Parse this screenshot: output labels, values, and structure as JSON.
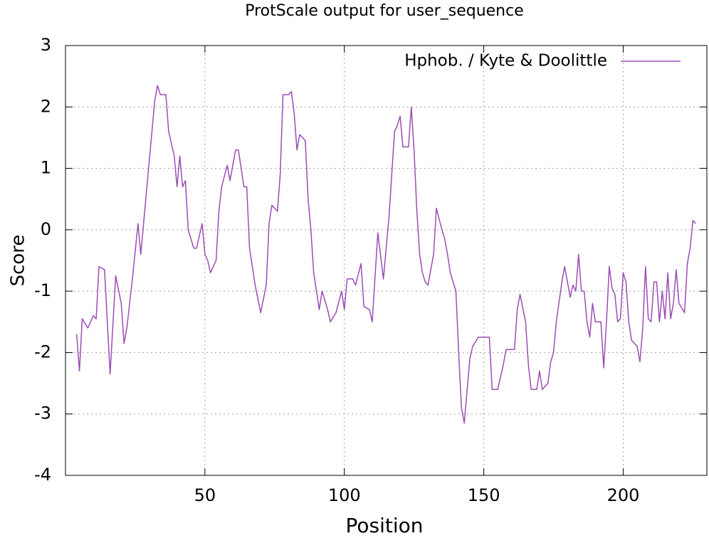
{
  "chart_data": {
    "type": "line",
    "title": "ProtScale output for user_sequence",
    "x_label": "Position",
    "y_label": "Score",
    "x": [
      4,
      5,
      6,
      8,
      10,
      11,
      12,
      14,
      16,
      18,
      20,
      21,
      22,
      24,
      26,
      27,
      29,
      31,
      32,
      33,
      34,
      36,
      37,
      39,
      40,
      41,
      42,
      43,
      44,
      46,
      47,
      49,
      50,
      51,
      52,
      54,
      55,
      56,
      58,
      59,
      61,
      62,
      64,
      65,
      66,
      68,
      70,
      72,
      73,
      74,
      76,
      77,
      78,
      80,
      81,
      82,
      83,
      84,
      86,
      87,
      88,
      89,
      91,
      92,
      94,
      95,
      97,
      99,
      100,
      101,
      103,
      104,
      106,
      107,
      109,
      110,
      112,
      114,
      116,
      118,
      119,
      120,
      121,
      123,
      124,
      125,
      126,
      127,
      128,
      129,
      130,
      132,
      133,
      135,
      136,
      137,
      138,
      140,
      141,
      142,
      143,
      145,
      146,
      148,
      149,
      152,
      153,
      155,
      157,
      158,
      161,
      162,
      163,
      165,
      166,
      167,
      169,
      170,
      171,
      173,
      174,
      175,
      176,
      178,
      179,
      181,
      182,
      183,
      184,
      185,
      186,
      187,
      188,
      189,
      190,
      192,
      193,
      194,
      195,
      196,
      197,
      198,
      199,
      200,
      201,
      202,
      203,
      205,
      206,
      207,
      208,
      209,
      210,
      211,
      212,
      213,
      214,
      215,
      216,
      217,
      218,
      219,
      220,
      222,
      223,
      224,
      225,
      226
    ],
    "series": [
      {
        "name": "Hphob. / Kyte & Doolittle",
        "color": "#9b4db5",
        "values": [
          -1.7,
          -2.3,
          -1.45,
          -1.6,
          -1.4,
          -1.45,
          -0.6,
          -0.65,
          -2.35,
          -0.75,
          -1.2,
          -1.85,
          -1.6,
          -0.8,
          0.1,
          -0.4,
          0.6,
          1.6,
          2.1,
          2.35,
          2.2,
          2.2,
          1.6,
          1.2,
          0.7,
          1.2,
          0.7,
          0.8,
          0,
          -0.3,
          -0.3,
          0.1,
          -0.4,
          -0.5,
          -0.7,
          -0.5,
          0.3,
          0.7,
          1.05,
          0.8,
          1.3,
          1.3,
          0.7,
          0.7,
          -0.3,
          -0.9,
          -1.35,
          -0.9,
          0.1,
          0.4,
          0.3,
          0.9,
          2.2,
          2.2,
          2.25,
          1.9,
          1.3,
          1.55,
          1.45,
          0.5,
          0,
          -0.7,
          -1.3,
          -1.0,
          -1.3,
          -1.5,
          -1.35,
          -1.0,
          -1.3,
          -0.8,
          -0.8,
          -0.9,
          -0.55,
          -1.25,
          -1.3,
          -1.5,
          -0.05,
          -0.8,
          0.2,
          1.6,
          1.7,
          1.85,
          1.35,
          1.35,
          2.0,
          1.3,
          0.3,
          -0.4,
          -0.7,
          -0.85,
          -0.9,
          -0.4,
          0.35,
          0,
          -0.15,
          -0.4,
          -0.7,
          -1.0,
          -2.0,
          -2.9,
          -3.15,
          -2.1,
          -1.9,
          -1.75,
          -1.75,
          -1.75,
          -2.6,
          -2.6,
          -2.2,
          -1.95,
          -1.95,
          -1.3,
          -1.05,
          -1.5,
          -2.2,
          -2.6,
          -2.6,
          -2.3,
          -2.6,
          -2.5,
          -2.15,
          -2.0,
          -1.5,
          -0.85,
          -0.6,
          -1.1,
          -0.9,
          -1.0,
          -0.4,
          -1.0,
          -1.0,
          -1.5,
          -1.75,
          -1.2,
          -1.5,
          -1.5,
          -2.25,
          -1.5,
          -0.6,
          -0.95,
          -1.05,
          -1.5,
          -1.45,
          -0.7,
          -0.85,
          -1.5,
          -1.8,
          -1.9,
          -2.15,
          -1.6,
          -0.6,
          -1.45,
          -1.5,
          -0.85,
          -0.85,
          -1.5,
          -1.0,
          -1.45,
          -0.7,
          -1.45,
          -1.2,
          -0.65,
          -1.2,
          -1.35,
          -0.55,
          -0.3,
          0.15,
          0.1
        ]
      }
    ],
    "xlim": [
      0,
      230
    ],
    "xticks": [
      50,
      100,
      150,
      200
    ],
    "ylim": [
      -4,
      3
    ],
    "yticks": [
      -4,
      -3,
      -2,
      -1,
      0,
      1,
      2,
      3
    ],
    "grid": true,
    "legend": "top-right"
  }
}
